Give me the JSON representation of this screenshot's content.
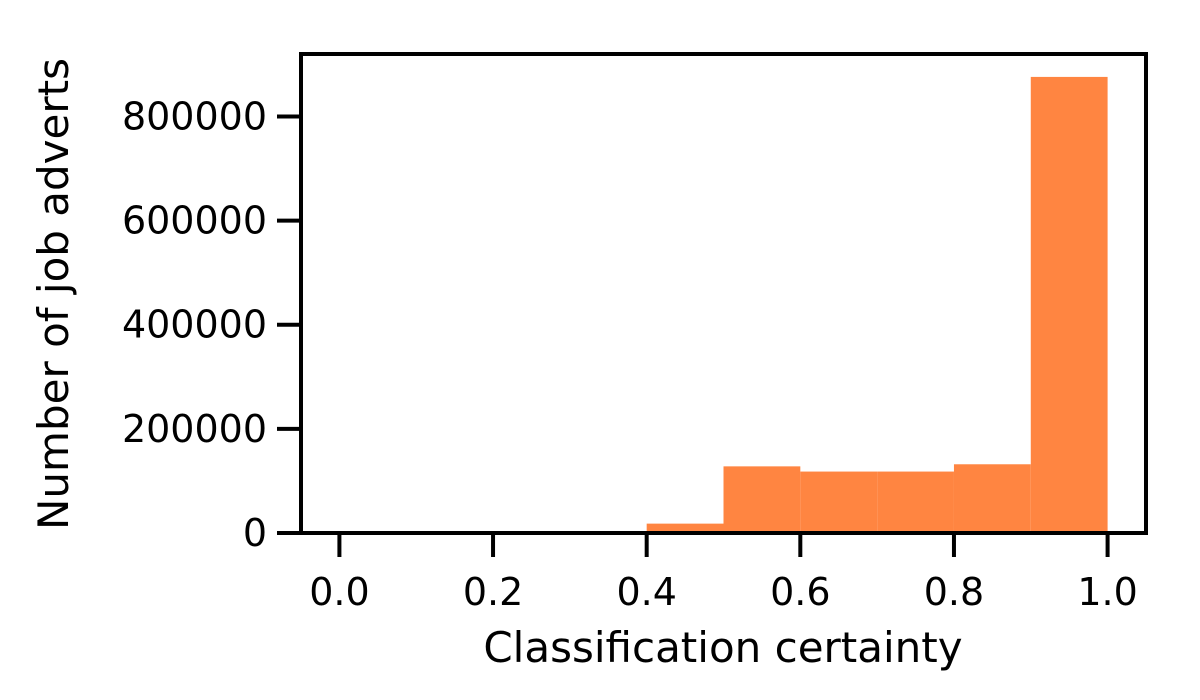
{
  "chart_data": {
    "type": "bar",
    "xlabel": "Classification certainty",
    "ylabel": "Number of job adverts",
    "title": "",
    "bin_edges": [
      0.4,
      0.5,
      0.6,
      0.7,
      0.8,
      0.9,
      1.0
    ],
    "values": [
      18000,
      128000,
      118000,
      118000,
      132000,
      876000
    ],
    "xlim": [
      -0.05,
      1.05
    ],
    "ylim": [
      0,
      920000
    ],
    "x_ticks": [
      0.0,
      0.2,
      0.4,
      0.6,
      0.8,
      1.0
    ],
    "x_tick_labels": [
      "0.0",
      "0.2",
      "0.4",
      "0.6",
      "0.8",
      "1.0"
    ],
    "y_ticks": [
      0,
      200000,
      400000,
      600000,
      800000
    ],
    "y_tick_labels": [
      "0",
      "200000",
      "400000",
      "600000",
      "800000"
    ],
    "grid": false,
    "legend": "none",
    "colors": {
      "bar": "#ff8541",
      "axis": "#000000"
    }
  }
}
